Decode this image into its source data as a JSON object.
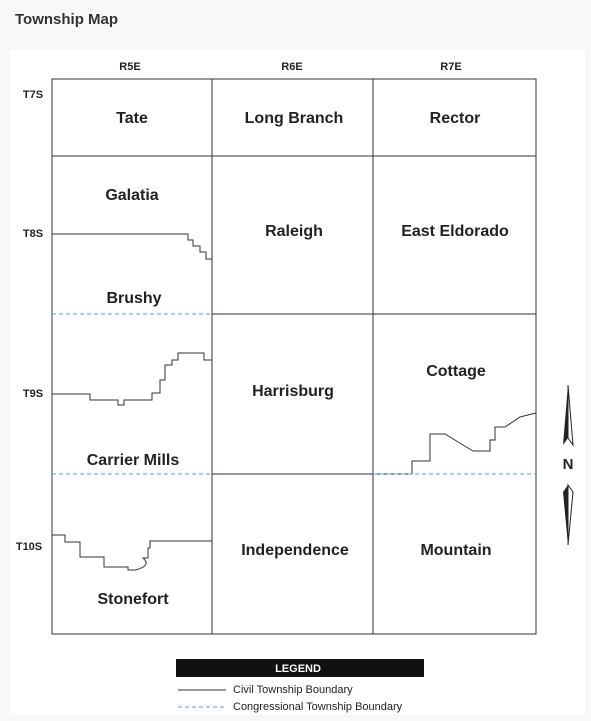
{
  "header": {
    "title": "Township Map"
  },
  "map": {
    "columns": [
      "R5E",
      "R6E",
      "R7E"
    ],
    "rows": [
      "T7S",
      "T8S",
      "T9S",
      "T10S"
    ],
    "townships": [
      "Tate",
      "Long Branch",
      "Rector",
      "Galatia",
      "Raleigh",
      "East Eldorado",
      "Brushy",
      "Harrisburg",
      "Cottage",
      "Carrier Mills",
      "Independence",
      "Mountain",
      "Stonefort"
    ],
    "compass": "N"
  },
  "legend": {
    "title": "LEGEND",
    "items": [
      "Civil Township Boundary",
      "Congressional Township Boundary"
    ]
  }
}
